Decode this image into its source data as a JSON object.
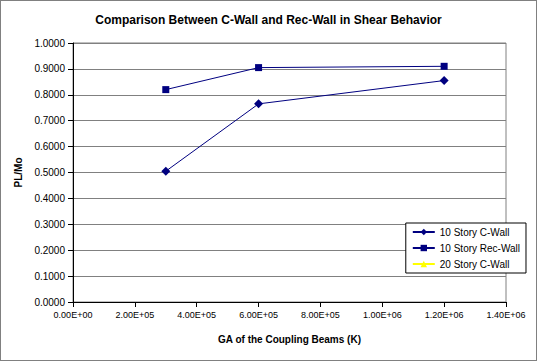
{
  "chart_data": {
    "type": "line",
    "title": "Comparison Between C-Wall and Rec-Wall in Shear Behavior",
    "x_label": "GA of the Coupling Beams (K)",
    "y_label": "PL/Mo",
    "x": [
      300000,
      600000,
      1200000
    ],
    "xlim": [
      0,
      1400000
    ],
    "xticks": [
      {
        "value": 0,
        "label": "0.00E+00"
      },
      {
        "value": 200000,
        "label": "2.00E+05"
      },
      {
        "value": 400000,
        "label": "4.00E+05"
      },
      {
        "value": 600000,
        "label": "6.00E+05"
      },
      {
        "value": 800000,
        "label": "8.00E+05"
      },
      {
        "value": 1000000,
        "label": "1.00E+06"
      },
      {
        "value": 1200000,
        "label": "1.20E+06"
      },
      {
        "value": 1400000,
        "label": "1.40E+06"
      }
    ],
    "ylim": [
      0,
      1
    ],
    "yticks": [
      {
        "value": 0,
        "label": "0.0000"
      },
      {
        "value": 0.1,
        "label": "0.1000"
      },
      {
        "value": 0.2,
        "label": "0.2000"
      },
      {
        "value": 0.3,
        "label": "0.3000"
      },
      {
        "value": 0.4,
        "label": "0.4000"
      },
      {
        "value": 0.5,
        "label": "0.5000"
      },
      {
        "value": 0.6,
        "label": "0.6000"
      },
      {
        "value": 0.7,
        "label": "0.7000"
      },
      {
        "value": 0.8,
        "label": "0.8000"
      },
      {
        "value": 0.9,
        "label": "0.9000"
      },
      {
        "value": 1,
        "label": "1.0000"
      }
    ],
    "grid": true,
    "legend": "right",
    "series": [
      {
        "name": "10 Story C-Wall",
        "color": "#000080",
        "marker": "diamond",
        "line_style": "solid",
        "values": [
          0.505,
          0.765,
          0.855
        ]
      },
      {
        "name": "10 Story Rec-Wall",
        "color": "#000080",
        "marker": "square",
        "line_style": "solid",
        "values": [
          0.82,
          0.905,
          0.91
        ]
      },
      {
        "name": "20 Story C-Wall",
        "color": "#ffff00",
        "marker": "triangle",
        "line_style": "solid",
        "values": [
          null,
          null,
          null
        ]
      }
    ]
  }
}
